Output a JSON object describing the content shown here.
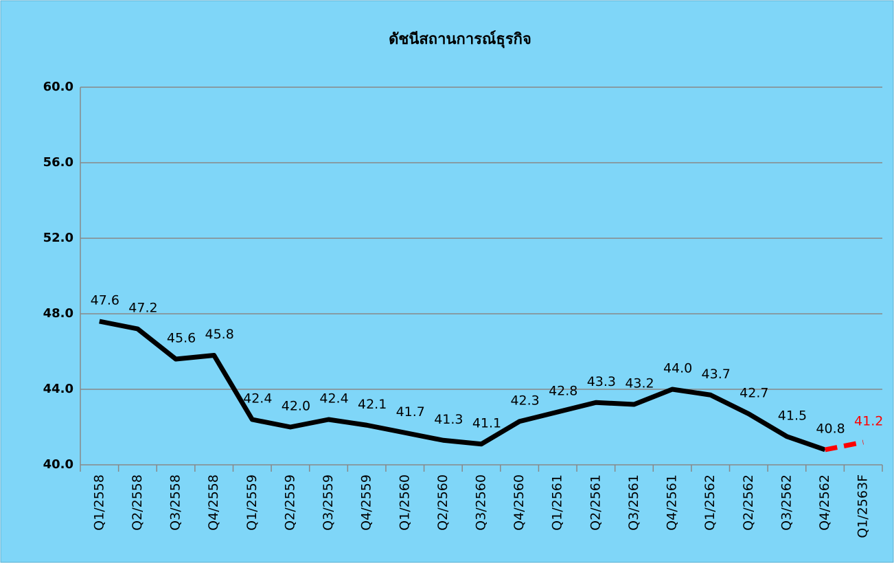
{
  "chart_data": {
    "type": "line",
    "title": "ดัชนีสถานการณ์ธุรกิจ",
    "categories": [
      "Q1/2558",
      "Q2/2558",
      "Q3/2558",
      "Q4/2558",
      "Q1/2559",
      "Q2/2559",
      "Q3/2559",
      "Q4/2559",
      "Q1/2560",
      "Q2/2560",
      "Q3/2560",
      "Q4/2560",
      "Q1/2561",
      "Q2/2561",
      "Q3/2561",
      "Q4/2561",
      "Q1/2562",
      "Q2/2562",
      "Q3/2562",
      "Q4/2562",
      "Q1/2563F"
    ],
    "series": [
      {
        "color": "#000000",
        "dashed": false,
        "values": [
          47.6,
          47.2,
          45.6,
          45.8,
          42.4,
          42.0,
          42.4,
          42.1,
          41.7,
          41.3,
          41.1,
          42.3,
          42.8,
          43.3,
          43.2,
          44.0,
          43.7,
          42.7,
          41.5,
          40.8,
          null
        ],
        "value_labels": [
          "47.6",
          "47.2",
          "45.6",
          "45.8",
          "42.4",
          "42.0",
          "42.4",
          "42.1",
          "41.7",
          "41.3",
          "41.1",
          "42.3",
          "42.8",
          "43.3",
          "43.2",
          "44.0",
          "43.7",
          "42.7",
          "41.5",
          "40.8",
          null
        ]
      },
      {
        "color": "#ff0000",
        "dashed": true,
        "values": [
          null,
          null,
          null,
          null,
          null,
          null,
          null,
          null,
          null,
          null,
          null,
          null,
          null,
          null,
          null,
          null,
          null,
          null,
          null,
          40.8,
          41.2
        ],
        "value_labels": [
          null,
          null,
          null,
          null,
          null,
          null,
          null,
          null,
          null,
          null,
          null,
          null,
          null,
          null,
          null,
          null,
          null,
          null,
          null,
          null,
          "41.2"
        ]
      }
    ],
    "ylim": [
      40,
      60
    ],
    "yticks": [
      {
        "value": 40,
        "label": "40.0"
      },
      {
        "value": 44,
        "label": "44.0"
      },
      {
        "value": 48,
        "label": "48.0"
      },
      {
        "value": 52,
        "label": "52.0"
      },
      {
        "value": 56,
        "label": "56.0"
      },
      {
        "value": 60,
        "label": "60.0"
      }
    ],
    "grid": true
  }
}
